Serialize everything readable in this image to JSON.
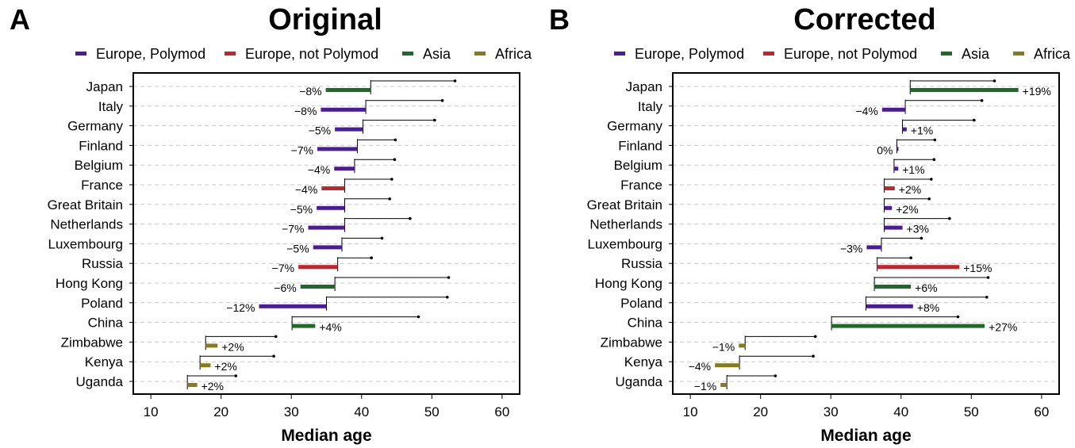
{
  "legend": [
    {
      "label": "Europe, Polymod",
      "color": "#4B1C98"
    },
    {
      "label": "Europe, not Polymod",
      "color": "#C0262C"
    },
    {
      "label": "Asia",
      "color": "#1E6A27"
    },
    {
      "label": "Africa",
      "color": "#857B1B"
    }
  ],
  "chart_data": [
    {
      "panel": "A",
      "title": "Original",
      "type": "bar",
      "xlabel": "Median age",
      "xlim": [
        7.5,
        62.5
      ],
      "xticks": [
        10,
        20,
        30,
        40,
        50,
        60
      ],
      "grid": "horizontal dashed",
      "categories": [
        "Japan",
        "Italy",
        "Germany",
        "Finland",
        "Belgium",
        "France",
        "Great Britain",
        "Netherlands",
        "Luxembourg",
        "Russia",
        "Hong Kong",
        "Poland",
        "China",
        "Zimbabwe",
        "Kenya",
        "Uganda"
      ],
      "group": [
        "Asia",
        "Europe, Polymod",
        "Europe, Polymod",
        "Europe, Polymod",
        "Europe, Polymod",
        "Europe, not Polymod",
        "Europe, Polymod",
        "Europe, Polymod",
        "Europe, Polymod",
        "Europe, not Polymod",
        "Asia",
        "Europe, Polymod",
        "Asia",
        "Africa",
        "Africa",
        "Africa"
      ],
      "baseline": [
        41.3,
        40.6,
        40.2,
        39.4,
        39.0,
        37.6,
        37.6,
        37.6,
        37.2,
        36.6,
        36.2,
        35.0,
        30.1,
        17.8,
        17.0,
        15.2
      ],
      "estimate": [
        34.9,
        34.2,
        36.2,
        33.7,
        36.1,
        34.3,
        33.6,
        32.4,
        33.1,
        31.0,
        31.3,
        25.4,
        33.4,
        19.5,
        18.5,
        16.6
      ],
      "reference": [
        53.3,
        51.5,
        50.4,
        44.8,
        44.7,
        44.3,
        44.0,
        46.9,
        42.9,
        41.4,
        52.4,
        52.2,
        48.1,
        27.8,
        27.5,
        22.1
      ],
      "labels": [
        "−8%",
        "−8%",
        "−5%",
        "−7%",
        "−4%",
        "−4%",
        "−5%",
        "−7%",
        "−5%",
        "−7%",
        "−6%",
        "−12%",
        "+4%",
        "+2%",
        "+2%",
        "+2%"
      ]
    },
    {
      "panel": "B",
      "title": "Corrected",
      "type": "bar",
      "xlabel": "Median age",
      "xlim": [
        7.5,
        62.5
      ],
      "xticks": [
        10,
        20,
        30,
        40,
        50,
        60
      ],
      "grid": "horizontal dashed",
      "categories": [
        "Japan",
        "Italy",
        "Germany",
        "Finland",
        "Belgium",
        "France",
        "Great Britain",
        "Netherlands",
        "Luxembourg",
        "Russia",
        "Hong Kong",
        "Poland",
        "China",
        "Zimbabwe",
        "Kenya",
        "Uganda"
      ],
      "group": [
        "Asia",
        "Europe, Polymod",
        "Europe, Polymod",
        "Europe, Polymod",
        "Europe, Polymod",
        "Europe, not Polymod",
        "Europe, Polymod",
        "Europe, Polymod",
        "Europe, Polymod",
        "Europe, not Polymod",
        "Asia",
        "Europe, Polymod",
        "Asia",
        "Africa",
        "Africa",
        "Africa"
      ],
      "baseline": [
        41.3,
        40.6,
        40.2,
        39.4,
        39.0,
        37.6,
        37.6,
        37.6,
        37.2,
        36.6,
        36.2,
        35.0,
        30.1,
        17.8,
        17.0,
        15.2
      ],
      "estimate": [
        56.7,
        37.3,
        40.8,
        39.4,
        39.6,
        39.1,
        38.7,
        40.2,
        35.1,
        48.3,
        41.4,
        41.7,
        51.9,
        16.9,
        13.5,
        14.3
      ],
      "reference": [
        53.3,
        51.5,
        50.4,
        44.8,
        44.7,
        44.3,
        44.0,
        46.9,
        42.9,
        41.4,
        52.4,
        52.2,
        48.1,
        27.8,
        27.5,
        22.1
      ],
      "labels": [
        "+19%",
        "−4%",
        "+1%",
        "0%",
        "+1%",
        "+2%",
        "+2%",
        "+3%",
        "−3%",
        "+15%",
        "+6%",
        "+8%",
        "+27%",
        "−1%",
        "−4%",
        "−1%"
      ]
    }
  ]
}
